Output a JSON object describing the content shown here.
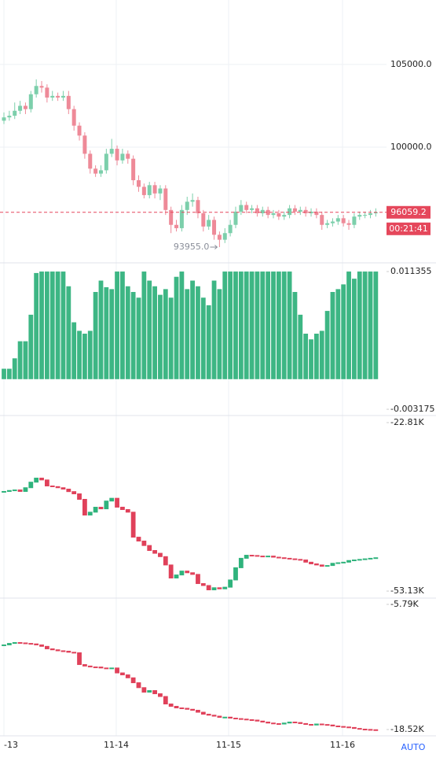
{
  "chart_data": [
    {
      "type": "candlestick",
      "up_color": "#7ccfab",
      "down_color": "#ee8a98",
      "last_color": "#e5475b",
      "ylim": [
        93050,
        108900
      ],
      "yticks": [
        {
          "value": 105000,
          "label": "105000.0"
        },
        {
          "value": 100000,
          "label": "100000.0"
        }
      ],
      "countdown": "00:21:41",
      "low_label": {
        "value": 93955,
        "label": "93955.0"
      },
      "x_labels": [
        "-13",
        "11-14",
        "11-15",
        "11-16"
      ],
      "scale_mode": "AUTO",
      "candles": [
        [
          101600,
          102100,
          101400,
          101800
        ],
        [
          101800,
          102200,
          101600,
          101900
        ],
        [
          101900,
          102700,
          101700,
          102200
        ],
        [
          102200,
          102800,
          102000,
          102500
        ],
        [
          102500,
          102700,
          102000,
          102300
        ],
        [
          102300,
          103400,
          102100,
          103200
        ],
        [
          103200,
          104100,
          103000,
          103700
        ],
        [
          103700,
          104000,
          103300,
          103600
        ],
        [
          103600,
          103800,
          102700,
          103000
        ],
        [
          103000,
          103400,
          102800,
          103100
        ],
        [
          103100,
          103300,
          102800,
          103000
        ],
        [
          103000,
          103400,
          102800,
          103100
        ],
        [
          103100,
          103400,
          102000,
          102300
        ],
        [
          102300,
          102500,
          101000,
          101300
        ],
        [
          101300,
          101500,
          100400,
          100700
        ],
        [
          100700,
          100900,
          99300,
          99600
        ],
        [
          99600,
          99800,
          98400,
          98700
        ],
        [
          98700,
          98900,
          98200,
          98400
        ],
        [
          98400,
          98900,
          98200,
          98600
        ],
        [
          98600,
          99900,
          98400,
          99600
        ],
        [
          99600,
          100500,
          99400,
          99900
        ],
        [
          99900,
          100100,
          98900,
          99200
        ],
        [
          99200,
          99900,
          99000,
          99600
        ],
        [
          99600,
          99800,
          99000,
          99300
        ],
        [
          99300,
          99500,
          97700,
          98000
        ],
        [
          98000,
          98300,
          97300,
          97600
        ],
        [
          97600,
          97800,
          96900,
          97100
        ],
        [
          97100,
          97900,
          96900,
          97700
        ],
        [
          97700,
          97900,
          96900,
          97200
        ],
        [
          97200,
          97700,
          96800,
          97500
        ],
        [
          97500,
          97700,
          95900,
          96200
        ],
        [
          96200,
          96400,
          94800,
          95300
        ],
        [
          95300,
          95600,
          94900,
          95100
        ],
        [
          95100,
          96500,
          94900,
          96200
        ],
        [
          96200,
          97000,
          95900,
          96700
        ],
        [
          96700,
          97200,
          96400,
          96800
        ],
        [
          96800,
          97000,
          95700,
          96000
        ],
        [
          96000,
          96200,
          94900,
          95200
        ],
        [
          95200,
          95900,
          95000,
          95600
        ],
        [
          95600,
          95800,
          94400,
          94700
        ],
        [
          94700,
          94900,
          93955,
          94400
        ],
        [
          94400,
          95100,
          94200,
          94800
        ],
        [
          94800,
          95600,
          94600,
          95300
        ],
        [
          95300,
          96400,
          95100,
          96100
        ],
        [
          96100,
          96800,
          95900,
          96500
        ],
        [
          96500,
          96700,
          96000,
          96200
        ],
        [
          96200,
          96500,
          96000,
          96300
        ],
        [
          96300,
          96500,
          95800,
          96000
        ],
        [
          96000,
          96400,
          95800,
          96200
        ],
        [
          96200,
          96400,
          95700,
          95900
        ],
        [
          95900,
          96200,
          95700,
          96000
        ],
        [
          96000,
          96200,
          95600,
          95800
        ],
        [
          95800,
          96100,
          95600,
          95900
        ],
        [
          95900,
          96500,
          95700,
          96300
        ],
        [
          96300,
          96500,
          95900,
          96100
        ],
        [
          96100,
          96400,
          95900,
          96200
        ],
        [
          96200,
          96400,
          95800,
          96000
        ],
        [
          96000,
          96300,
          95800,
          96100
        ],
        [
          96100,
          96300,
          95700,
          95900
        ],
        [
          95900,
          96100,
          95000,
          95300
        ],
        [
          95300,
          95600,
          95100,
          95400
        ],
        [
          95400,
          95700,
          95200,
          95500
        ],
        [
          95500,
          95900,
          95300,
          95700
        ],
        [
          95700,
          95900,
          95200,
          95400
        ],
        [
          95400,
          95600,
          95000,
          95300
        ],
        [
          95300,
          96000,
          95100,
          95800
        ],
        [
          95800,
          96100,
          95600,
          95900
        ],
        [
          95900,
          96100,
          95700,
          95900
        ],
        [
          95900,
          96200,
          95700,
          96000
        ],
        [
          96000,
          96300,
          95800,
          96059.2
        ]
      ]
    },
    {
      "type": "bar",
      "color": "#3db684",
      "ylim": [
        -0.00367,
        0.01194
      ],
      "yticks": [
        0.011355,
        -0.003175
      ],
      "values": [
        0.0011,
        0.0011,
        0.0022,
        0.004,
        0.004,
        0.0068,
        0.0112,
        0.011355,
        0.011355,
        0.011355,
        0.011355,
        0.011355,
        0.0098,
        0.006,
        0.0051,
        0.0048,
        0.0051,
        0.0092,
        0.0104,
        0.0097,
        0.0095,
        0.011355,
        0.011355,
        0.0098,
        0.0092,
        0.0086,
        0.011355,
        0.0104,
        0.0098,
        0.0089,
        0.0095,
        0.0086,
        0.0108,
        0.011355,
        0.0095,
        0.0104,
        0.0098,
        0.0086,
        0.0078,
        0.0104,
        0.0095,
        0.011355,
        0.011355,
        0.011355,
        0.011355,
        0.011355,
        0.011355,
        0.011355,
        0.011355,
        0.011355,
        0.011355,
        0.011355,
        0.011355,
        0.011355,
        0.0092,
        0.0068,
        0.0048,
        0.0042,
        0.0048,
        0.0051,
        0.0072,
        0.0092,
        0.0095,
        0.01,
        0.011355,
        0.0106,
        0.011355,
        0.011355,
        0.011355,
        0.011355
      ]
    },
    {
      "type": "delta-candle",
      "up_color": "#2fb37c",
      "down_color": "#e0415a",
      "ylim": [
        -54.11,
        -21.82
      ],
      "yticks": [
        {
          "value": -22.81,
          "label": "-22.81K"
        },
        {
          "value": -53.13,
          "label": "-53.13K"
        }
      ],
      "values": [
        -35.27,
        -35.1,
        -35.0,
        -35.27,
        -34.6,
        -33.6,
        -32.87,
        -33.2,
        -34.28,
        -34.4,
        -34.6,
        -34.85,
        -35.3,
        -35.7,
        -36.69,
        -39.52,
        -39.0,
        -38.11,
        -38.4,
        -37.0,
        -36.5,
        -38.1,
        -38.53,
        -39.0,
        -43.5,
        -44.2,
        -45.0,
        -45.9,
        -46.4,
        -47.0,
        -48.5,
        -50.85,
        -50.3,
        -49.6,
        -49.9,
        -50.2,
        -51.85,
        -52.2,
        -52.98,
        -52.6,
        -52.8,
        -52.5,
        -51.2,
        -49.0,
        -47.3,
        -46.75,
        -46.8,
        -46.9,
        -47.0,
        -46.9,
        -47.1,
        -47.2,
        -47.3,
        -47.4,
        -47.5,
        -47.6,
        -48.0,
        -48.3,
        -48.5,
        -48.73,
        -48.6,
        -48.2,
        -48.1,
        -48.0,
        -47.7,
        -47.6,
        -47.5,
        -47.4,
        -47.3,
        -47.2
      ]
    },
    {
      "type": "delta-candle",
      "up_color": "#2fb37c",
      "down_color": "#e0415a",
      "ylim": [
        -18.92,
        -5.31
      ],
      "yticks": [
        {
          "value": -5.79,
          "label": "-5.79K"
        },
        {
          "value": -18.52,
          "label": "-18.52K"
        }
      ],
      "values": [
        -9.95,
        -9.8,
        -9.71,
        -9.75,
        -9.8,
        -9.85,
        -9.95,
        -10.1,
        -10.35,
        -10.45,
        -10.55,
        -10.59,
        -10.7,
        -10.75,
        -11.95,
        -12.1,
        -12.19,
        -12.2,
        -12.3,
        -12.36,
        -12.3,
        -12.8,
        -13.0,
        -13.3,
        -13.8,
        -14.3,
        -14.76,
        -14.6,
        -14.92,
        -15.2,
        -15.96,
        -16.2,
        -16.36,
        -16.4,
        -16.5,
        -16.6,
        -16.8,
        -17.0,
        -17.1,
        -17.2,
        -17.32,
        -17.3,
        -17.4,
        -17.45,
        -17.5,
        -17.56,
        -17.6,
        -17.7,
        -17.8,
        -17.9,
        -17.96,
        -18.0,
        -17.9,
        -17.8,
        -17.85,
        -17.95,
        -18.04,
        -18.1,
        -18.0,
        -18.05,
        -18.1,
        -18.2,
        -18.25,
        -18.3,
        -18.35,
        -18.45,
        -18.52,
        -18.55,
        -18.58,
        -18.6
      ]
    }
  ]
}
